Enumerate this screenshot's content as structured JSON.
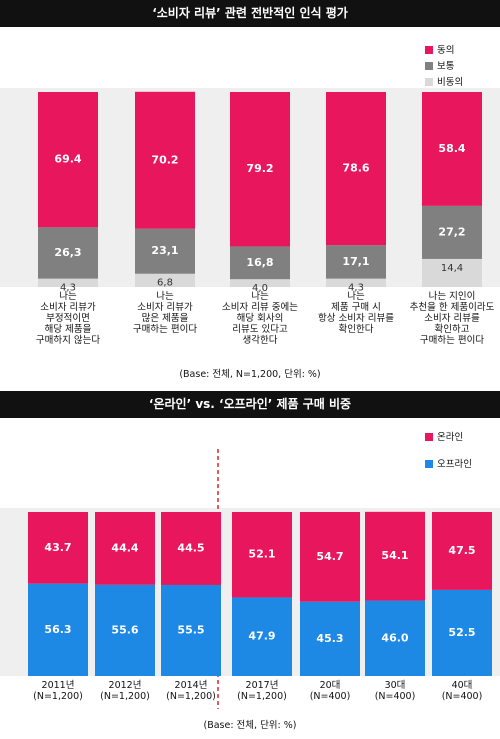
{
  "chart_data": [
    {
      "type": "bar",
      "stacked": true,
      "title": "‘소비자 리뷰’ 관련 전반적인 인식 평가",
      "categories": [
        "나는\n소비자 리뷰가\n부정적이면\n해당 제품을\n구매하지 않는다",
        "나는\n소비자 리뷰가\n많은 제품을\n구매하는 편이다",
        "나는\n소비자 리뷰 중에는\n해당 회사의\n리뷰도 있다고\n생각한다",
        "나는\n제품 구매 시\n항상 소비자 리뷰를\n확인한다",
        "나는 지인이\n추천을 한 제품이라도\n소비자 리뷰를\n확인하고\n구매하는 편이다"
      ],
      "series": [
        {
          "name": "동의",
          "color": "#e8175d",
          "values": [
            69.4,
            70.2,
            79.2,
            78.6,
            58.4
          ]
        },
        {
          "name": "보통",
          "color": "#808080",
          "values": [
            26.3,
            23.1,
            16.8,
            17.1,
            27.2
          ],
          "value_labels": [
            "26,3",
            "23,1",
            "16,8",
            "17,1",
            "27,2"
          ]
        },
        {
          "name": "비동의",
          "color": "#d9d9d9",
          "values": [
            4.3,
            6.8,
            4.0,
            4.3,
            14.4
          ],
          "value_labels": [
            "4,3",
            "6,8",
            "4,0",
            "4,3",
            "14,4"
          ]
        }
      ],
      "ylim": [
        0,
        100
      ],
      "note": "(Base: 전체, N=1,200, 단위: %)"
    },
    {
      "type": "bar",
      "stacked": true,
      "title": "‘온라인’ vs. ‘오프라인’ 제품 구매 비중",
      "categories": [
        "2011년\n(N=1,200)",
        "2012년\n(N=1,200)",
        "2014년\n(N=1,200)",
        "2017년\n(N=1,200)",
        "20대\n(N=400)",
        "30대\n(N=400)",
        "40대\n(N=400)"
      ],
      "series": [
        {
          "name": "온라인",
          "color": "#e8175d",
          "values": [
            43.7,
            44.4,
            44.5,
            52.1,
            54.7,
            54.1,
            47.5
          ]
        },
        {
          "name": "오프라인",
          "color": "#1e88e5",
          "values": [
            56.3,
            55.6,
            55.5,
            47.9,
            45.3,
            46.0,
            52.5
          ],
          "value_labels": [
            "56.3",
            "55.6",
            "55.5",
            "47.9",
            "45.3",
            "46.0",
            "52.5"
          ]
        }
      ],
      "ylim": [
        0,
        100
      ],
      "note": "(Base: 전체, 단위: %)"
    }
  ]
}
